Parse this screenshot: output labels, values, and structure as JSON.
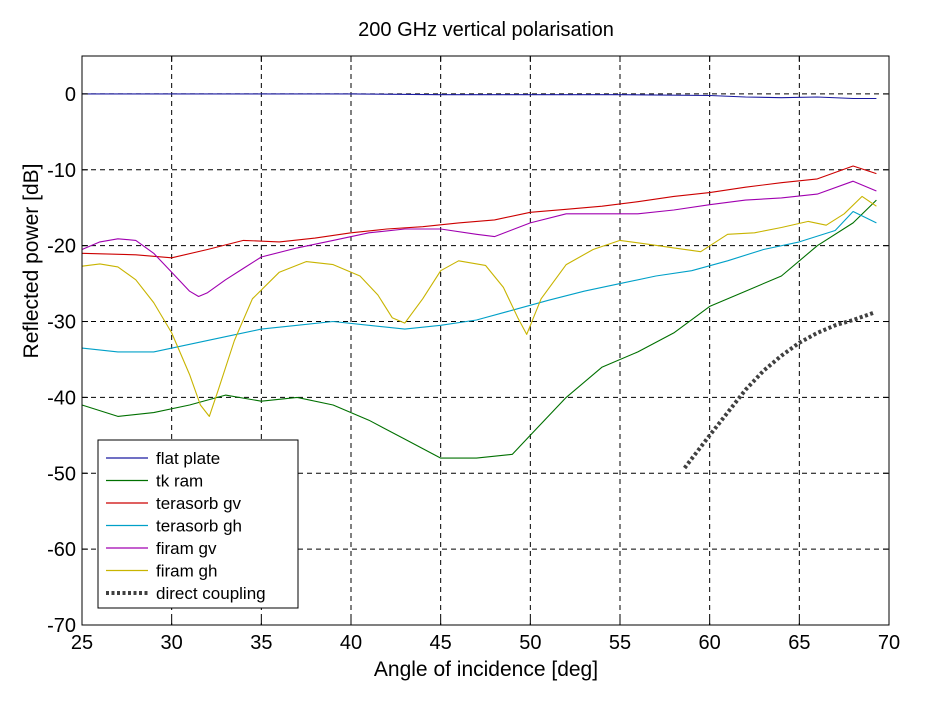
{
  "chart_data": {
    "type": "line",
    "title": "200 GHz vertical polarisation",
    "xlabel": "Angle of incidence [deg]",
    "ylabel": "Reflected power [dB]",
    "xlim": [
      25,
      70
    ],
    "ylim": [
      -70,
      5
    ],
    "xticks": [
      25,
      30,
      35,
      40,
      45,
      50,
      55,
      60,
      65,
      70
    ],
    "yticks": [
      0,
      -10,
      -20,
      -30,
      -40,
      -50,
      -60,
      -70
    ],
    "xtick_labels": [
      "25",
      "30",
      "35",
      "40",
      "45",
      "50",
      "55",
      "60",
      "65",
      "70"
    ],
    "ytick_labels": [
      "0",
      "-10",
      "-20",
      "-30",
      "-40",
      "-50",
      "-60",
      "-70"
    ],
    "grid": true,
    "legend_position": "bottom-left",
    "series": [
      {
        "name": "flat plate",
        "color": "#1a1aa0",
        "style": "solid",
        "x": [
          25,
          30,
          35,
          40,
          45,
          50,
          55,
          60,
          62,
          64,
          66,
          68,
          69.3
        ],
        "y": [
          0,
          0,
          0,
          0,
          -0.1,
          -0.1,
          -0.1,
          -0.2,
          -0.4,
          -0.5,
          -0.4,
          -0.6,
          -0.6
        ]
      },
      {
        "name": "tk ram",
        "color": "#007000",
        "style": "solid",
        "x": [
          25,
          27,
          29,
          31,
          33,
          35,
          37,
          39,
          41,
          43,
          45,
          47,
          49,
          50,
          52,
          54,
          56,
          58,
          60,
          62,
          64,
          66,
          68,
          69.3
        ],
        "y": [
          -41,
          -42.5,
          -42,
          -41,
          -39.7,
          -40.5,
          -40,
          -41,
          -43,
          -45.5,
          -48,
          -48,
          -47.5,
          -45,
          -40,
          -36,
          -34,
          -31.5,
          -28,
          -26,
          -24,
          -20,
          -17,
          -14
        ]
      },
      {
        "name": "terasorb gv",
        "color": "#cc0000",
        "style": "solid",
        "x": [
          25,
          28,
          30,
          32,
          34,
          36,
          38,
          40,
          42,
          44,
          46,
          48,
          50,
          52,
          54,
          56,
          58,
          60,
          62,
          64,
          66,
          68,
          69.3
        ],
        "y": [
          -21,
          -21.2,
          -21.6,
          -20.5,
          -19.3,
          -19.5,
          -19,
          -18.3,
          -17.8,
          -17.5,
          -17,
          -16.6,
          -15.6,
          -15.2,
          -14.8,
          -14.2,
          -13.5,
          -13,
          -12.3,
          -11.7,
          -11.2,
          -9.5,
          -10.5
        ]
      },
      {
        "name": "terasorb gh",
        "color": "#00a0c8",
        "style": "solid",
        "x": [
          25,
          27,
          29,
          31,
          33,
          35,
          37,
          39,
          41,
          43,
          45,
          47,
          49,
          51,
          53,
          55,
          57,
          59,
          61,
          63,
          65,
          67,
          68,
          69.3
        ],
        "y": [
          -33.5,
          -34,
          -34,
          -33,
          -32,
          -31,
          -30.5,
          -30,
          -30.5,
          -31,
          -30.5,
          -29.8,
          -28.5,
          -27.2,
          -26,
          -25,
          -24,
          -23.3,
          -22,
          -20.5,
          -19.5,
          -18,
          -15.5,
          -17
        ]
      },
      {
        "name": "firam gv",
        "color": "#a000b0",
        "style": "solid",
        "x": [
          25,
          26,
          27,
          28,
          29,
          30,
          31,
          31.5,
          32,
          33,
          34,
          35,
          37,
          39,
          41,
          43,
          45,
          47,
          48,
          50,
          52,
          54,
          56,
          58,
          60,
          62,
          64,
          66,
          68,
          69.3
        ],
        "y": [
          -20.5,
          -19.5,
          -19.1,
          -19.3,
          -21,
          -23.5,
          -26,
          -26.7,
          -26.2,
          -24.5,
          -23,
          -21.5,
          -20.3,
          -19.3,
          -18.3,
          -17.8,
          -17.8,
          -18.5,
          -18.8,
          -17,
          -15.8,
          -15.8,
          -15.8,
          -15.3,
          -14.6,
          -14,
          -13.7,
          -13.2,
          -11.5,
          -12.8
        ]
      },
      {
        "name": "firam gh",
        "color": "#c8b400",
        "style": "solid",
        "x": [
          25,
          26,
          27,
          28,
          29,
          30,
          31,
          31.6,
          32.1,
          32.6,
          33.5,
          34.5,
          36,
          37.5,
          39,
          40.5,
          41.5,
          42.3,
          43,
          44,
          45,
          46,
          47.5,
          48.5,
          49.3,
          49.8,
          50.6,
          52,
          53.5,
          55,
          56.5,
          58,
          59.5,
          61,
          62.5,
          64,
          65.5,
          66.5,
          67.5,
          68.5,
          69.3
        ],
        "y": [
          -22.7,
          -22.4,
          -22.8,
          -24.5,
          -27.5,
          -31.5,
          -37,
          -41,
          -42.5,
          -39,
          -32.5,
          -27,
          -23.5,
          -22.1,
          -22.5,
          -24,
          -26.5,
          -29.5,
          -30.2,
          -27,
          -23.3,
          -22,
          -22.6,
          -25.5,
          -29.5,
          -31.7,
          -27,
          -22.5,
          -20.5,
          -19.3,
          -19.8,
          -20.3,
          -20.8,
          -18.5,
          -18.3,
          -17.6,
          -16.8,
          -17.3,
          -15.8,
          -13.5,
          -14.8
        ]
      },
      {
        "name": "direct coupling",
        "color": "#404040",
        "style": "dotted",
        "x": [
          58.6,
          60,
          61,
          62,
          63,
          64,
          65,
          66,
          67,
          68,
          69.2
        ],
        "y": [
          -49.3,
          -45,
          -42,
          -39,
          -36.5,
          -34.5,
          -32.8,
          -31.5,
          -30.5,
          -29.8,
          -28.8
        ]
      }
    ]
  }
}
